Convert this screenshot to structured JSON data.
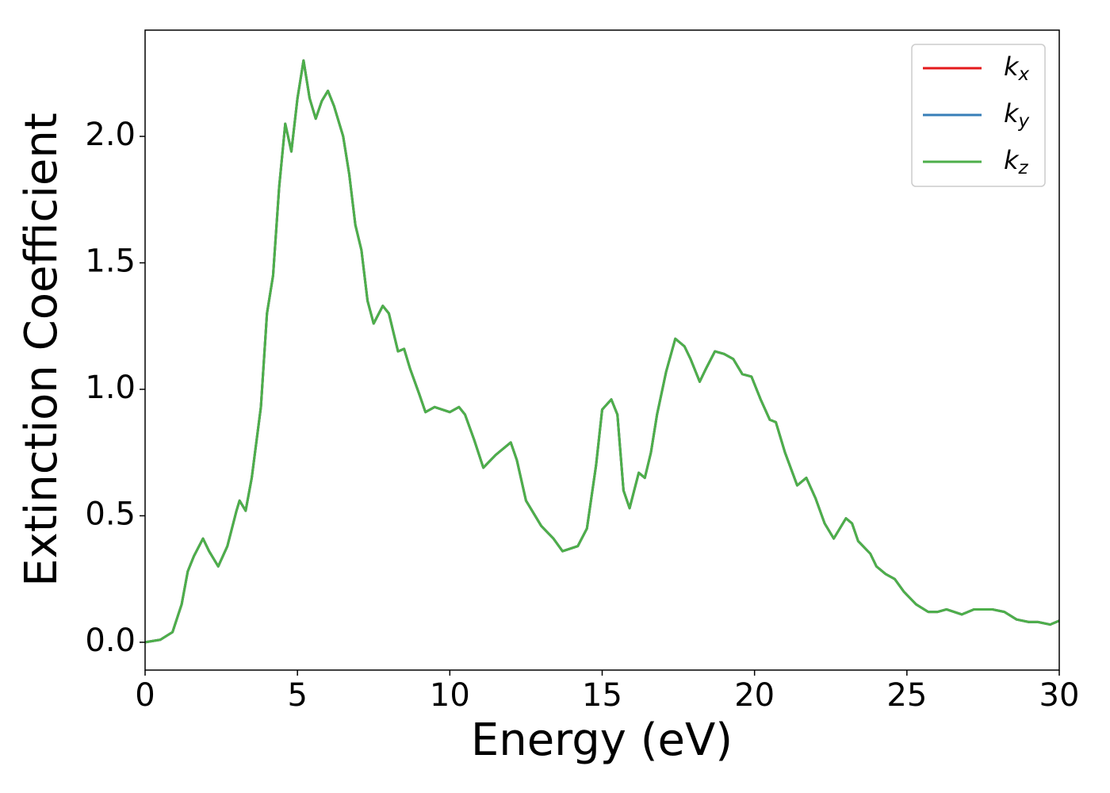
{
  "chart_data": {
    "type": "line",
    "xlabel": "Energy (eV)",
    "ylabel": "Extinction Coefficient",
    "xlim": [
      0,
      30
    ],
    "ylim": [
      -0.11,
      2.42
    ],
    "xticks": [
      0,
      5,
      10,
      15,
      20,
      25,
      30
    ],
    "yticks": [
      {
        "value": 0,
        "label": "0.0"
      },
      0.5,
      {
        "value": 1,
        "label": "1.0"
      },
      1.5,
      {
        "value": 2,
        "label": "2.0"
      }
    ],
    "legend": "upper right",
    "grid": false,
    "x": [
      0,
      0.5,
      0.9,
      1.2,
      1.4,
      1.6,
      1.9,
      2.1,
      2.4,
      2.7,
      3.0,
      3.1,
      3.3,
      3.5,
      3.8,
      4.0,
      4.2,
      4.4,
      4.6,
      4.8,
      5.0,
      5.2,
      5.4,
      5.6,
      5.8,
      6.0,
      6.2,
      6.5,
      6.7,
      6.9,
      7.1,
      7.3,
      7.5,
      7.8,
      8.0,
      8.3,
      8.5,
      8.7,
      9.0,
      9.2,
      9.5,
      10.0,
      10.3,
      10.5,
      10.8,
      11.1,
      11.5,
      12.0,
      12.2,
      12.5,
      12.8,
      13.0,
      13.4,
      13.7,
      14.2,
      14.5,
      14.8,
      15.0,
      15.3,
      15.5,
      15.7,
      15.9,
      16.2,
      16.4,
      16.6,
      16.8,
      17.1,
      17.4,
      17.7,
      17.9,
      18.2,
      18.4,
      18.7,
      19.0,
      19.3,
      19.6,
      19.9,
      20.2,
      20.5,
      20.7,
      21.0,
      21.4,
      21.7,
      22.0,
      22.3,
      22.6,
      22.9,
      23.0,
      23.2,
      23.4,
      23.8,
      24.0,
      24.3,
      24.6,
      24.9,
      25.3,
      25.7,
      26.0,
      26.3,
      26.8,
      27.2,
      27.8,
      28.2,
      28.6,
      29.0,
      29.3,
      29.7,
      30.0
    ],
    "series": [
      {
        "name": "kx",
        "color": "#e41a1c",
        "values": [
          0,
          0.01,
          0.04,
          0.15,
          0.28,
          0.34,
          0.41,
          0.36,
          0.3,
          0.38,
          0.52,
          0.56,
          0.52,
          0.65,
          0.93,
          1.3,
          1.45,
          1.8,
          2.05,
          1.94,
          2.15,
          2.3,
          2.15,
          2.07,
          2.14,
          2.18,
          2.12,
          2.0,
          1.85,
          1.65,
          1.55,
          1.35,
          1.26,
          1.33,
          1.3,
          1.15,
          1.16,
          1.08,
          0.98,
          0.91,
          0.93,
          0.91,
          0.93,
          0.9,
          0.8,
          0.69,
          0.74,
          0.79,
          0.72,
          0.56,
          0.5,
          0.46,
          0.41,
          0.36,
          0.38,
          0.45,
          0.7,
          0.92,
          0.96,
          0.9,
          0.6,
          0.53,
          0.67,
          0.65,
          0.75,
          0.9,
          1.07,
          1.2,
          1.17,
          1.12,
          1.03,
          1.08,
          1.15,
          1.14,
          1.12,
          1.06,
          1.05,
          0.96,
          0.88,
          0.87,
          0.75,
          0.62,
          0.65,
          0.57,
          0.47,
          0.41,
          0.47,
          0.49,
          0.47,
          0.4,
          0.35,
          0.3,
          0.27,
          0.25,
          0.2,
          0.15,
          0.12,
          0.12,
          0.13,
          0.11,
          0.13,
          0.13,
          0.12,
          0.09,
          0.08,
          0.08,
          0.07,
          0.085
        ]
      },
      {
        "name": "ky",
        "color": "#377eb8",
        "values": [
          0,
          0.01,
          0.04,
          0.15,
          0.28,
          0.34,
          0.41,
          0.36,
          0.3,
          0.38,
          0.52,
          0.56,
          0.52,
          0.65,
          0.93,
          1.3,
          1.45,
          1.8,
          2.05,
          1.94,
          2.15,
          2.3,
          2.15,
          2.07,
          2.14,
          2.18,
          2.12,
          2.0,
          1.85,
          1.65,
          1.55,
          1.35,
          1.26,
          1.33,
          1.3,
          1.15,
          1.16,
          1.08,
          0.98,
          0.91,
          0.93,
          0.91,
          0.93,
          0.9,
          0.8,
          0.69,
          0.74,
          0.79,
          0.72,
          0.56,
          0.5,
          0.46,
          0.41,
          0.36,
          0.38,
          0.45,
          0.7,
          0.92,
          0.96,
          0.9,
          0.6,
          0.53,
          0.67,
          0.65,
          0.75,
          0.9,
          1.07,
          1.2,
          1.17,
          1.12,
          1.03,
          1.08,
          1.15,
          1.14,
          1.12,
          1.06,
          1.05,
          0.96,
          0.88,
          0.87,
          0.75,
          0.62,
          0.65,
          0.57,
          0.47,
          0.41,
          0.47,
          0.49,
          0.47,
          0.4,
          0.35,
          0.3,
          0.27,
          0.25,
          0.2,
          0.15,
          0.12,
          0.12,
          0.13,
          0.11,
          0.13,
          0.13,
          0.12,
          0.09,
          0.08,
          0.08,
          0.07,
          0.085
        ]
      },
      {
        "name": "kz",
        "color": "#4daf4a",
        "values": [
          0,
          0.01,
          0.04,
          0.15,
          0.28,
          0.34,
          0.41,
          0.36,
          0.3,
          0.38,
          0.52,
          0.56,
          0.52,
          0.65,
          0.93,
          1.3,
          1.45,
          1.8,
          2.05,
          1.94,
          2.15,
          2.3,
          2.15,
          2.07,
          2.14,
          2.18,
          2.12,
          2.0,
          1.85,
          1.65,
          1.55,
          1.35,
          1.26,
          1.33,
          1.3,
          1.15,
          1.16,
          1.08,
          0.98,
          0.91,
          0.93,
          0.91,
          0.93,
          0.9,
          0.8,
          0.69,
          0.74,
          0.79,
          0.72,
          0.56,
          0.5,
          0.46,
          0.41,
          0.36,
          0.38,
          0.45,
          0.7,
          0.92,
          0.96,
          0.9,
          0.6,
          0.53,
          0.67,
          0.65,
          0.75,
          0.9,
          1.07,
          1.2,
          1.17,
          1.12,
          1.03,
          1.08,
          1.15,
          1.14,
          1.12,
          1.06,
          1.05,
          0.96,
          0.88,
          0.87,
          0.75,
          0.62,
          0.65,
          0.57,
          0.47,
          0.41,
          0.47,
          0.49,
          0.47,
          0.4,
          0.35,
          0.3,
          0.27,
          0.25,
          0.2,
          0.15,
          0.12,
          0.12,
          0.13,
          0.11,
          0.13,
          0.13,
          0.12,
          0.09,
          0.08,
          0.08,
          0.07,
          0.085
        ]
      }
    ]
  }
}
